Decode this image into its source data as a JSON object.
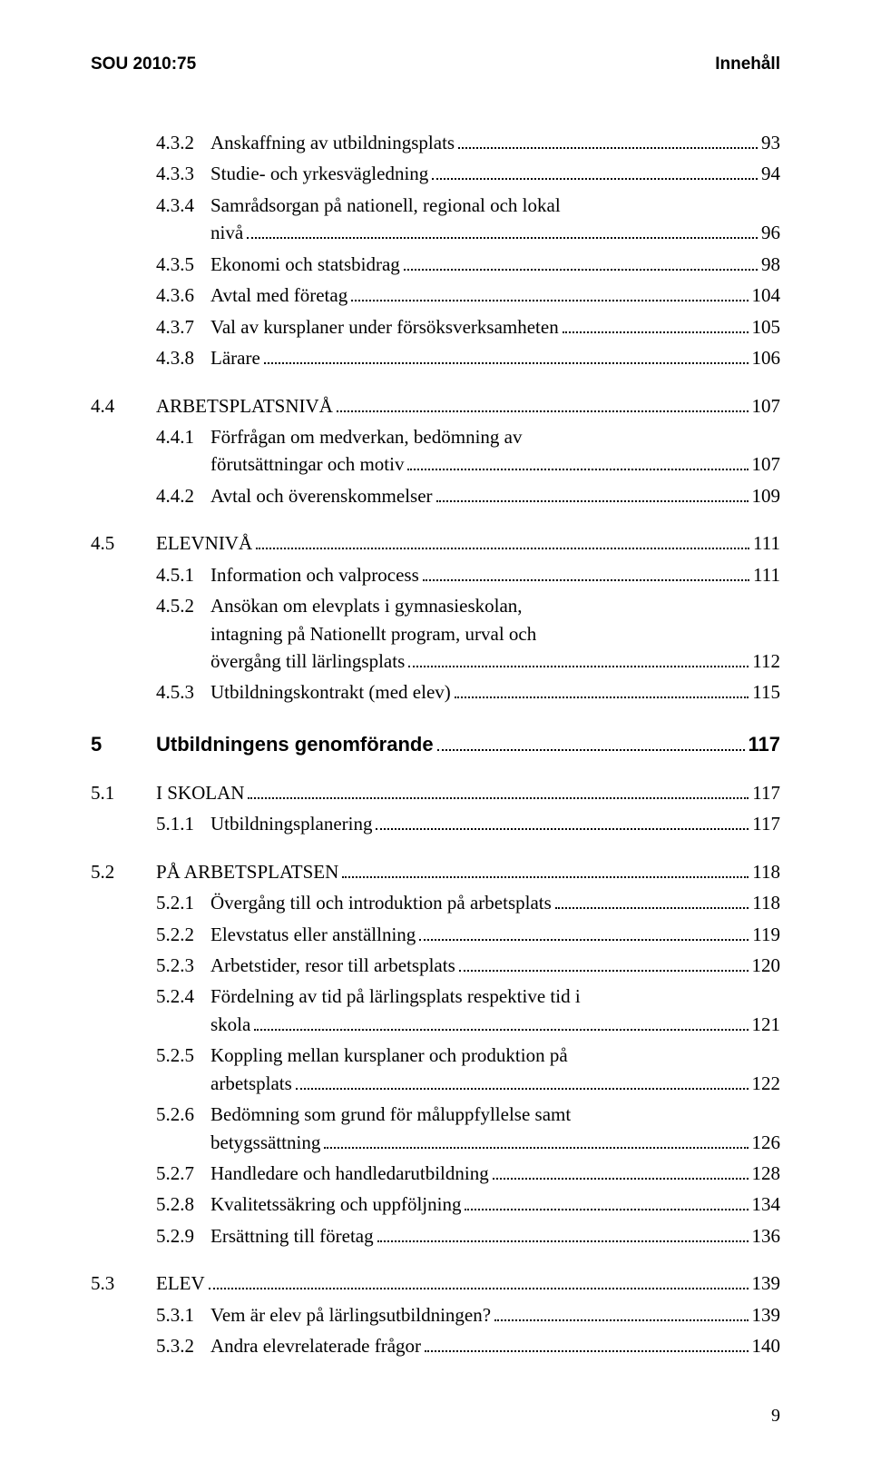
{
  "header": {
    "left": "SOU 2010:75",
    "right": "Innehåll"
  },
  "footer_page": "9",
  "toc": [
    {
      "level": 3,
      "num": "4.3.2",
      "title": "Anskaffning av utbildningsplats",
      "page": "93"
    },
    {
      "level": 3,
      "num": "4.3.3",
      "title": "Studie- och yrkesvägledning",
      "page": "94"
    },
    {
      "level": 3,
      "num": "4.3.4",
      "title_lines": [
        "Samrådsorgan på nationell, regional och lokal",
        "nivå"
      ],
      "page": "96"
    },
    {
      "level": 3,
      "num": "4.3.5",
      "title": "Ekonomi och statsbidrag",
      "page": "98"
    },
    {
      "level": 3,
      "num": "4.3.6",
      "title": "Avtal med företag",
      "page": "104"
    },
    {
      "level": 3,
      "num": "4.3.7",
      "title": "Val av kursplaner under försöksverksamheten",
      "page": "105"
    },
    {
      "level": 3,
      "num": "4.3.8",
      "title": "Lärare",
      "page": "106"
    },
    {
      "level": 2,
      "num": "4.4",
      "title": "ARBETSPLATSNIVÅ",
      "page": "107"
    },
    {
      "level": 3,
      "num": "4.4.1",
      "title_lines": [
        "Förfrågan om medverkan, bedömning av",
        "förutsättningar och motiv"
      ],
      "page": "107"
    },
    {
      "level": 3,
      "num": "4.4.2",
      "title": "Avtal och överenskommelser",
      "page": "109"
    },
    {
      "level": 2,
      "num": "4.5",
      "title": "ELEVNIVÅ",
      "page": "111"
    },
    {
      "level": 3,
      "num": "4.5.1",
      "title": "Information och valprocess",
      "page": "111"
    },
    {
      "level": 3,
      "num": "4.5.2",
      "title_lines": [
        "Ansökan om elevplats i gymnasieskolan,",
        "intagning på Nationellt program, urval och",
        "övergång till lärlingsplats"
      ],
      "page": "112"
    },
    {
      "level": 3,
      "num": "4.5.3",
      "title": "Utbildningskontrakt (med elev)",
      "page": "115"
    },
    {
      "level": 1,
      "num": "5",
      "title": "Utbildningens genomförande",
      "page": "117"
    },
    {
      "level": 2,
      "num": "5.1",
      "title": "I SKOLAN",
      "page": "117"
    },
    {
      "level": 3,
      "num": "5.1.1",
      "title": "Utbildningsplanering",
      "page": "117"
    },
    {
      "level": 2,
      "num": "5.2",
      "title": "PÅ ARBETSPLATSEN",
      "page": "118"
    },
    {
      "level": 3,
      "num": "5.2.1",
      "title": "Övergång till och introduktion på arbetsplats",
      "page": "118"
    },
    {
      "level": 3,
      "num": "5.2.2",
      "title": "Elevstatus eller anställning",
      "page": "119"
    },
    {
      "level": 3,
      "num": "5.2.3",
      "title": "Arbetstider, resor till arbetsplats",
      "page": "120"
    },
    {
      "level": 3,
      "num": "5.2.4",
      "title_lines": [
        "Fördelning av tid på lärlingsplats respektive tid i",
        "skola"
      ],
      "page": "121"
    },
    {
      "level": 3,
      "num": "5.2.5",
      "title_lines": [
        "Koppling mellan kursplaner och produktion på",
        "arbetsplats"
      ],
      "page": "122"
    },
    {
      "level": 3,
      "num": "5.2.6",
      "title_lines": [
        "Bedömning som grund för måluppfyllelse samt",
        "betygssättning"
      ],
      "page": "126"
    },
    {
      "level": 3,
      "num": "5.2.7",
      "title": "Handledare och handledarutbildning",
      "page": "128"
    },
    {
      "level": 3,
      "num": "5.2.8",
      "title": "Kvalitetssäkring och uppföljning",
      "page": "134"
    },
    {
      "level": 3,
      "num": "5.2.9",
      "title": "Ersättning till företag",
      "page": "136"
    },
    {
      "level": 2,
      "num": "5.3",
      "title": "ELEV",
      "page": "139"
    },
    {
      "level": 3,
      "num": "5.3.1",
      "title": "Vem är elev på lärlingsutbildningen?",
      "page": "139"
    },
    {
      "level": 3,
      "num": "5.3.2",
      "title": "Andra elevrelaterade frågor",
      "page": "140"
    }
  ]
}
